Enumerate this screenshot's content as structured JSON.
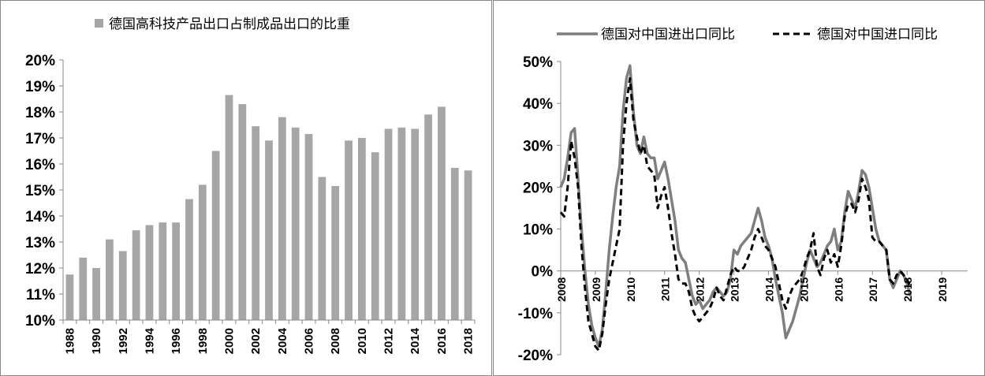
{
  "chart_data": [
    {
      "type": "bar",
      "legend": [
        "德国高科技产品出口占制成品出口的比重"
      ],
      "categories": [
        "1988",
        "1989",
        "1990",
        "1991",
        "1992",
        "1993",
        "1994",
        "1995",
        "1996",
        "1997",
        "1998",
        "1999",
        "2000",
        "2001",
        "2002",
        "2003",
        "2004",
        "2005",
        "2006",
        "2007",
        "2008",
        "2009",
        "2010",
        "2011",
        "2012",
        "2013",
        "2014",
        "2015",
        "2016",
        "2017",
        "2018"
      ],
      "x_tick_labels": [
        "1988",
        "1990",
        "1992",
        "1994",
        "1996",
        "1998",
        "2000",
        "2002",
        "2004",
        "2006",
        "2008",
        "2010",
        "2012",
        "2014",
        "2016",
        "2018"
      ],
      "series": [
        {
          "name": "德国高科技产品出口占制成品出口的比重",
          "color": "#a6a6a6",
          "values": [
            11.75,
            12.4,
            12.0,
            13.1,
            12.65,
            13.45,
            13.65,
            13.75,
            13.75,
            14.65,
            15.2,
            16.5,
            18.65,
            18.3,
            17.45,
            16.9,
            17.8,
            17.4,
            17.15,
            15.5,
            15.15,
            16.9,
            17.0,
            16.45,
            17.35,
            17.4,
            17.35,
            17.9,
            18.2,
            15.85,
            15.75
          ]
        }
      ],
      "y_tick_labels": [
        "10%",
        "11%",
        "12%",
        "13%",
        "14%",
        "15%",
        "16%",
        "17%",
        "18%",
        "19%",
        "20%"
      ],
      "ylim": [
        10,
        20
      ],
      "grid": false,
      "legend_position": "top"
    },
    {
      "type": "line",
      "x_tick_labels": [
        "2008",
        "2009",
        "2010",
        "2011",
        "2012",
        "2013",
        "2014",
        "2015",
        "2016",
        "2017",
        "2018",
        "2019"
      ],
      "y_tick_labels": [
        "50%",
        "40%",
        "30%",
        "20%",
        "10%",
        "0%",
        "-10%",
        "-20%"
      ],
      "ylim": [
        -20,
        50
      ],
      "xlim": [
        2008.0,
        2019.75
      ],
      "grid": false,
      "legend_position": "top",
      "series": [
        {
          "name": "德国对中国进出口同比",
          "color": "#7f7f7f",
          "style": "solid",
          "points": [
            [
              2008.0,
              20
            ],
            [
              2008.1,
              22
            ],
            [
              2008.2,
              27
            ],
            [
              2008.3,
              33
            ],
            [
              2008.4,
              34
            ],
            [
              2008.5,
              22
            ],
            [
              2008.6,
              10
            ],
            [
              2008.7,
              0
            ],
            [
              2008.8,
              -8
            ],
            [
              2008.9,
              -13
            ],
            [
              2009.0,
              -16
            ],
            [
              2009.1,
              -18
            ],
            [
              2009.2,
              -14
            ],
            [
              2009.3,
              -5
            ],
            [
              2009.4,
              5
            ],
            [
              2009.5,
              13
            ],
            [
              2009.6,
              20
            ],
            [
              2009.7,
              25
            ],
            [
              2009.8,
              38
            ],
            [
              2009.9,
              46
            ],
            [
              2010.0,
              49
            ],
            [
              2010.1,
              38
            ],
            [
              2010.2,
              30
            ],
            [
              2010.3,
              28
            ],
            [
              2010.4,
              32
            ],
            [
              2010.5,
              28
            ],
            [
              2010.6,
              27
            ],
            [
              2010.7,
              27
            ],
            [
              2010.8,
              22
            ],
            [
              2010.9,
              24
            ],
            [
              2011.0,
              26
            ],
            [
              2011.1,
              22
            ],
            [
              2011.2,
              17
            ],
            [
              2011.3,
              12
            ],
            [
              2011.4,
              5
            ],
            [
              2011.5,
              3
            ],
            [
              2011.6,
              2
            ],
            [
              2011.7,
              -2
            ],
            [
              2011.8,
              -6
            ],
            [
              2011.9,
              -8
            ],
            [
              2012.0,
              -7
            ],
            [
              2012.1,
              -9
            ],
            [
              2012.2,
              -8
            ],
            [
              2012.3,
              -7
            ],
            [
              2012.4,
              -5
            ],
            [
              2012.5,
              -4
            ],
            [
              2012.6,
              -5
            ],
            [
              2012.7,
              -6
            ],
            [
              2012.8,
              -5
            ],
            [
              2012.9,
              -2
            ],
            [
              2013.0,
              5
            ],
            [
              2013.1,
              4
            ],
            [
              2013.2,
              6
            ],
            [
              2013.3,
              7
            ],
            [
              2013.4,
              8
            ],
            [
              2013.5,
              9
            ],
            [
              2013.6,
              12
            ],
            [
              2013.7,
              15
            ],
            [
              2013.8,
              12
            ],
            [
              2013.9,
              8
            ],
            [
              2014.0,
              6
            ],
            [
              2014.1,
              3
            ],
            [
              2014.2,
              -2
            ],
            [
              2014.3,
              -6
            ],
            [
              2014.4,
              -10
            ],
            [
              2014.5,
              -16
            ],
            [
              2014.6,
              -14
            ],
            [
              2014.7,
              -12
            ],
            [
              2014.8,
              -9
            ],
            [
              2014.9,
              -6
            ],
            [
              2015.0,
              -2
            ],
            [
              2015.1,
              2
            ],
            [
              2015.2,
              5
            ],
            [
              2015.3,
              3
            ],
            [
              2015.4,
              1
            ],
            [
              2015.5,
              2
            ],
            [
              2015.6,
              4
            ],
            [
              2015.7,
              6
            ],
            [
              2015.8,
              7
            ],
            [
              2015.9,
              10
            ],
            [
              2016.0,
              5
            ],
            [
              2016.1,
              7
            ],
            [
              2016.2,
              14
            ],
            [
              2016.3,
              19
            ],
            [
              2016.4,
              17
            ],
            [
              2016.5,
              15
            ],
            [
              2016.6,
              19
            ],
            [
              2016.7,
              24
            ],
            [
              2016.8,
              23
            ],
            [
              2016.9,
              20
            ],
            [
              2017.0,
              15
            ],
            [
              2017.1,
              10
            ],
            [
              2017.2,
              7
            ],
            [
              2017.3,
              6
            ],
            [
              2017.4,
              5
            ],
            [
              2017.5,
              -2
            ],
            [
              2017.6,
              -4
            ],
            [
              2017.7,
              -2
            ],
            [
              2017.8,
              0
            ],
            [
              2017.9,
              -1
            ],
            [
              2018.0,
              -3
            ],
            [
              2018.1,
              -6
            ]
          ]
        },
        {
          "name": "德国对中国进口同比",
          "color": "#000000",
          "style": "dashed",
          "points": [
            [
              2008.0,
              14
            ],
            [
              2008.1,
              13
            ],
            [
              2008.2,
              20
            ],
            [
              2008.3,
              31
            ],
            [
              2008.4,
              27
            ],
            [
              2008.5,
              20
            ],
            [
              2008.6,
              6
            ],
            [
              2008.7,
              -4
            ],
            [
              2008.8,
              -12
            ],
            [
              2008.9,
              -15
            ],
            [
              2009.0,
              -18
            ],
            [
              2009.1,
              -19
            ],
            [
              2009.2,
              -15
            ],
            [
              2009.3,
              -8
            ],
            [
              2009.4,
              -2
            ],
            [
              2009.5,
              2
            ],
            [
              2009.6,
              6
            ],
            [
              2009.7,
              10
            ],
            [
              2009.8,
              30
            ],
            [
              2009.9,
              40
            ],
            [
              2010.0,
              46
            ],
            [
              2010.1,
              36
            ],
            [
              2010.2,
              32
            ],
            [
              2010.3,
              28
            ],
            [
              2010.4,
              30
            ],
            [
              2010.5,
              25
            ],
            [
              2010.6,
              24
            ],
            [
              2010.7,
              23
            ],
            [
              2010.8,
              15
            ],
            [
              2010.9,
              18
            ],
            [
              2011.0,
              20
            ],
            [
              2011.1,
              15
            ],
            [
              2011.2,
              9
            ],
            [
              2011.3,
              4
            ],
            [
              2011.4,
              -2
            ],
            [
              2011.5,
              -3
            ],
            [
              2011.6,
              -3
            ],
            [
              2011.7,
              -5
            ],
            [
              2011.8,
              -9
            ],
            [
              2011.9,
              -11
            ],
            [
              2012.0,
              -12
            ],
            [
              2012.1,
              -11
            ],
            [
              2012.2,
              -10
            ],
            [
              2012.3,
              -9
            ],
            [
              2012.4,
              -7
            ],
            [
              2012.5,
              -4
            ],
            [
              2012.6,
              -6
            ],
            [
              2012.7,
              -7
            ],
            [
              2012.8,
              -4
            ],
            [
              2012.9,
              -1
            ],
            [
              2013.0,
              1
            ],
            [
              2013.1,
              0
            ],
            [
              2013.2,
              0
            ],
            [
              2013.3,
              1
            ],
            [
              2013.4,
              3
            ],
            [
              2013.5,
              5
            ],
            [
              2013.6,
              8
            ],
            [
              2013.7,
              10
            ],
            [
              2013.8,
              8
            ],
            [
              2013.9,
              6
            ],
            [
              2014.0,
              5
            ],
            [
              2014.1,
              3
            ],
            [
              2014.2,
              1
            ],
            [
              2014.3,
              -3
            ],
            [
              2014.4,
              -7
            ],
            [
              2014.5,
              -9
            ],
            [
              2014.6,
              -6
            ],
            [
              2014.7,
              -4
            ],
            [
              2014.8,
              -3
            ],
            [
              2014.9,
              -2
            ],
            [
              2015.0,
              0
            ],
            [
              2015.1,
              3
            ],
            [
              2015.2,
              5
            ],
            [
              2015.3,
              9
            ],
            [
              2015.4,
              1
            ],
            [
              2015.5,
              -1
            ],
            [
              2015.6,
              3
            ],
            [
              2015.7,
              5
            ],
            [
              2015.8,
              2
            ],
            [
              2015.9,
              4
            ],
            [
              2016.0,
              1
            ],
            [
              2016.1,
              6
            ],
            [
              2016.2,
              13
            ],
            [
              2016.3,
              16
            ],
            [
              2016.4,
              16
            ],
            [
              2016.5,
              14
            ],
            [
              2016.6,
              17
            ],
            [
              2016.7,
              22
            ],
            [
              2016.8,
              20
            ],
            [
              2016.9,
              17
            ],
            [
              2017.0,
              8
            ],
            [
              2017.1,
              7
            ],
            [
              2017.2,
              7
            ],
            [
              2017.3,
              6
            ],
            [
              2017.4,
              5
            ],
            [
              2017.5,
              -2
            ],
            [
              2017.6,
              -3
            ],
            [
              2017.7,
              -1
            ],
            [
              2017.8,
              0
            ],
            [
              2017.9,
              -1
            ],
            [
              2018.0,
              -2
            ],
            [
              2018.1,
              -4
            ]
          ]
        }
      ]
    }
  ]
}
